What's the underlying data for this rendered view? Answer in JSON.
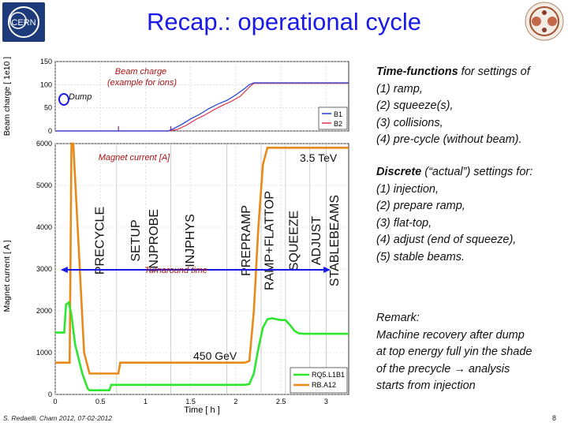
{
  "slide": {
    "title": "Recap.: operational cycle",
    "footer": "S. Redaelli, Cham 2012, 07-02-2012",
    "page_number": "8"
  },
  "logos": {
    "left_text": "CERN"
  },
  "right_panel": {
    "tf_heading": "Time-functions",
    "tf_rest": " for settings of",
    "tf_items": [
      "(1) ramp,",
      "(2) squeeze(s),",
      "(3) collisions,",
      "(4) pre-cycle (without beam)."
    ],
    "disc_heading": "Discrete",
    "disc_rest": " (“actual”) settings for:",
    "disc_items": [
      "(1) injection,",
      "(2) prepare ramp,",
      "(3) flat-top,",
      "(4) adjust (end of squeeze),",
      "(5) stable beams."
    ],
    "remark_lines": [
      "Remark:",
      "Machine recovery after dump",
      "at top energy full yin the shade",
      "of the precycle → analysis",
      "starts from injection"
    ]
  },
  "colors": {
    "title": "#1a1ae6",
    "b1": "#1f3fd6",
    "b2": "#e0334d",
    "rq5": "#2ee62e",
    "rb": "#e88a1a",
    "arrow": "#1a1ae6",
    "annotation": "#aa1111",
    "dump_circle": "#1a1ae6"
  },
  "chart_data": [
    {
      "type": "line",
      "title": "",
      "annotation": "Beam charge\n(example for ions)",
      "annotation_lines": [
        "Beam charge",
        "(example for ions)"
      ],
      "dump_label": "Dump",
      "xlabel": "",
      "ylabel": "Beam charge [ 1e10 ]",
      "xlim": [
        0,
        3.25
      ],
      "ylim": [
        0,
        150
      ],
      "yticks": [
        0,
        50,
        100,
        150
      ],
      "series": [
        {
          "name": "B1",
          "x": [
            0,
            0.04,
            0.04,
            1.25,
            1.3,
            1.4,
            1.5,
            1.6,
            1.7,
            1.8,
            1.9,
            2.0,
            2.1,
            2.15,
            2.2,
            3.25
          ],
          "y": [
            0,
            0,
            0,
            0,
            4,
            14,
            26,
            36,
            48,
            58,
            66,
            78,
            92,
            100,
            104,
            104
          ]
        },
        {
          "name": "B2",
          "x": [
            0,
            1.25,
            1.35,
            1.45,
            1.55,
            1.65,
            1.75,
            1.85,
            1.95,
            2.05,
            2.15,
            2.2,
            3.25
          ],
          "y": [
            0,
            0,
            3,
            12,
            24,
            34,
            45,
            55,
            64,
            75,
            95,
            103,
            103
          ]
        }
      ],
      "markers": [
        0.7,
        1.28
      ]
    },
    {
      "type": "line",
      "annotation": "Magnet current [A]",
      "xlabel": "Time [ h ]",
      "ylabel": "Magnet current [ A ]",
      "xlim": [
        0,
        3.25
      ],
      "ylim": [
        0,
        6000
      ],
      "xticks": [
        0,
        0.5,
        1,
        1.5,
        2,
        2.5,
        3
      ],
      "xtick_labels": [
        "0",
        "0.5",
        "1",
        "1.5",
        "2",
        "2.5",
        "3"
      ],
      "yticks": [
        0,
        1000,
        2000,
        3000,
        4000,
        5000,
        6000
      ],
      "ytick_labels": [
        "0",
        "1000",
        "2000",
        "3000",
        "4000",
        "5000",
        "6000"
      ],
      "series": [
        {
          "name": "RQ5.L1B1",
          "x": [
            0,
            0.1,
            0.12,
            0.15,
            0.18,
            0.22,
            0.3,
            0.36,
            0.38,
            0.5,
            0.6,
            0.62,
            2.1,
            2.15,
            2.2,
            2.25,
            2.3,
            2.35,
            2.4,
            2.45,
            2.5,
            2.55,
            2.6,
            2.65,
            2.7,
            2.75,
            3.25
          ],
          "y": [
            1480,
            1480,
            2150,
            2200,
            1900,
            1200,
            500,
            140,
            100,
            100,
            100,
            230,
            230,
            250,
            500,
            1100,
            1600,
            1800,
            1820,
            1800,
            1780,
            1780,
            1660,
            1520,
            1460,
            1450,
            1450
          ]
        },
        {
          "name": "RB.A12",
          "x": [
            0,
            0.16,
            0.18,
            0.2,
            0.26,
            0.32,
            0.38,
            0.4,
            0.42,
            0.7,
            0.72,
            2.1,
            2.15,
            2.2,
            2.25,
            2.3,
            2.35,
            3.25
          ],
          "y": [
            760,
            760,
            6000,
            6000,
            3500,
            1000,
            500,
            500,
            500,
            500,
            760,
            760,
            800,
            2000,
            4000,
            5500,
            5900,
            5900
          ]
        }
      ],
      "phases": [
        {
          "label": "PRECYCLE",
          "x": 0.5
        },
        {
          "label": "SETUP",
          "x": 0.9
        },
        {
          "label": "INJPROBE",
          "x": 1.1
        },
        {
          "label": "INJPHYS",
          "x": 1.5
        },
        {
          "label": "PREPRAMP",
          "x": 2.12
        },
        {
          "label": "RAMP+FLATTOP",
          "x": 2.38
        },
        {
          "label": "SQUEEZE",
          "x": 2.65
        },
        {
          "label": "ADJUST",
          "x": 2.9
        },
        {
          "label": "STABLEBEAMS",
          "x": 3.1
        }
      ],
      "phase_dividers": [
        0.68,
        1.28,
        1.9,
        2.28,
        2.55,
        2.82,
        3.0
      ],
      "energy_top": "3.5 TeV",
      "energy_bottom": "450 GeV",
      "turnaround_label": "Turnaround time",
      "turnaround_range": [
        0.06,
        3.05
      ],
      "turnaround_y": 2980
    }
  ]
}
